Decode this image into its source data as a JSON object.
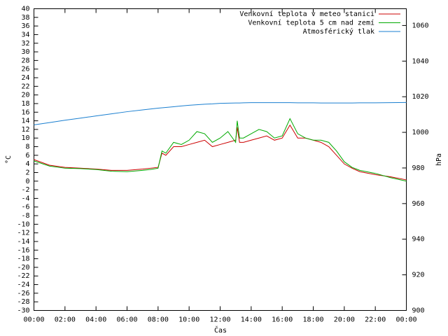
{
  "chart_data": {
    "type": "line",
    "x_label": "Čas",
    "y_label": "°C",
    "y2_label": "hPa",
    "x": [
      0,
      1,
      2,
      3,
      4,
      5,
      6,
      7,
      7.5,
      8,
      8.25,
      8.5,
      9,
      9.5,
      10,
      10.5,
      11,
      11.5,
      12,
      12.5,
      13,
      13.1,
      13.25,
      13.5,
      14,
      14.5,
      15,
      15.5,
      16,
      16.5,
      17,
      17.5,
      18,
      18.5,
      19,
      19.5,
      20,
      20.5,
      21,
      22,
      23,
      24
    ],
    "xlim": [
      0,
      24
    ],
    "xticks": [
      {
        "value": 0,
        "label": "00:00"
      },
      {
        "value": 2,
        "label": "02:00"
      },
      {
        "value": 4,
        "label": "04:00"
      },
      {
        "value": 6,
        "label": "06:00"
      },
      {
        "value": 8,
        "label": "08:00"
      },
      {
        "value": 10,
        "label": "10:00"
      },
      {
        "value": 12,
        "label": "12:00"
      },
      {
        "value": 14,
        "label": "14:00"
      },
      {
        "value": 16,
        "label": "16:00"
      },
      {
        "value": 18,
        "label": "18:00"
      },
      {
        "value": 20,
        "label": "20:00"
      },
      {
        "value": 22,
        "label": "22:00"
      },
      {
        "value": 24,
        "label": "00:00"
      }
    ],
    "ylim": [
      -30,
      40
    ],
    "yticks": [
      -30,
      -28,
      -26,
      -24,
      -22,
      -20,
      -18,
      -16,
      -14,
      -12,
      -10,
      -8,
      -6,
      -4,
      -2,
      0,
      2,
      4,
      6,
      8,
      10,
      12,
      14,
      16,
      18,
      20,
      22,
      24,
      26,
      28,
      30,
      32,
      34,
      36,
      38,
      40
    ],
    "y2lim": [
      900,
      1069.4
    ],
    "y2ticks": [
      900,
      920,
      940,
      960,
      980,
      1000,
      1020,
      1040,
      1060
    ],
    "legend": "top-right",
    "series": [
      {
        "name": "Venkovní teplota v meteo stanici",
        "color": "#cc0000",
        "values": [
          5,
          3.7,
          3.2,
          3,
          2.8,
          2.5,
          2.5,
          2.8,
          3,
          3.2,
          6.5,
          6,
          8,
          8,
          8.5,
          9,
          9.5,
          8,
          8.5,
          9,
          9.5,
          12.5,
          9,
          9,
          9.5,
          10,
          10.5,
          9.5,
          10,
          13,
          10,
          10,
          9.5,
          9,
          8,
          6,
          4,
          3,
          2.2,
          1.5,
          1,
          0.3
        ]
      },
      {
        "name": "Venkovní teplota 5 cm nad zemí",
        "color": "#00aa00",
        "values": [
          4.7,
          3.5,
          3,
          2.9,
          2.7,
          2.3,
          2.2,
          2.5,
          2.7,
          3,
          7,
          6.5,
          9,
          8.5,
          9.5,
          11.5,
          11,
          9,
          10,
          11.5,
          9,
          14,
          10,
          10,
          11,
          12,
          11.5,
          10,
          10.5,
          14.5,
          11,
          10,
          9.5,
          9.5,
          9,
          7,
          4.5,
          3.2,
          2.5,
          1.8,
          0.8,
          0
        ]
      },
      {
        "name": "Atmosférický tlak",
        "color": "#1a7fd0",
        "axis": "y2",
        "values": [
          1004.2,
          1005.5,
          1006.8,
          1008,
          1009.2,
          1010.4,
          1011.6,
          1012.6,
          1013.1,
          1013.6,
          1013.8,
          1014,
          1014.4,
          1014.8,
          1015.2,
          1015.5,
          1015.8,
          1016,
          1016.3,
          1016.4,
          1016.5,
          1016.5,
          1016.5,
          1016.6,
          1016.7,
          1016.7,
          1016.7,
          1016.7,
          1016.7,
          1016.7,
          1016.6,
          1016.6,
          1016.6,
          1016.5,
          1016.5,
          1016.5,
          1016.5,
          1016.5,
          1016.6,
          1016.6,
          1016.7,
          1016.8
        ]
      }
    ]
  }
}
